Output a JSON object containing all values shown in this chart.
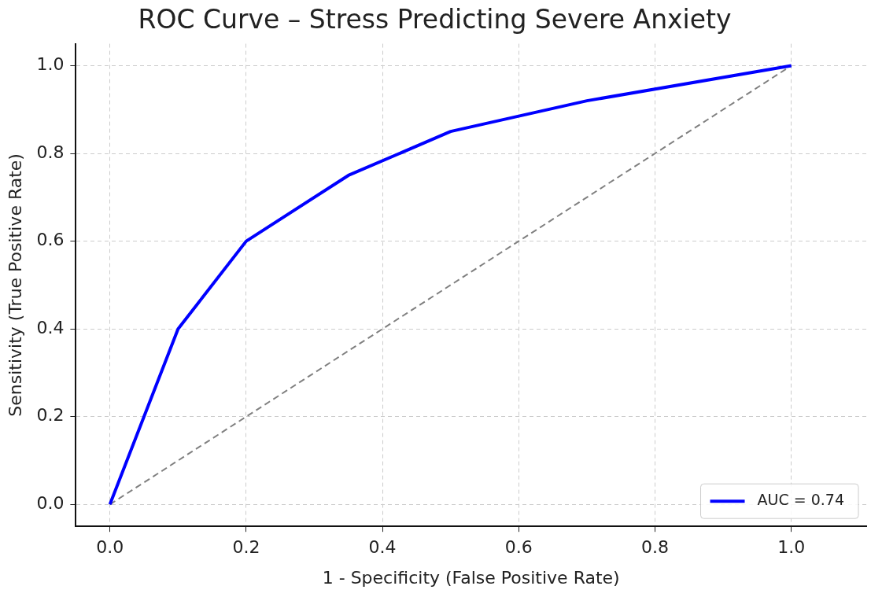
{
  "chart_data": {
    "type": "line",
    "title": "ROC Curve – Stress Predicting Severe Anxiety",
    "xlabel": "1 - Specificity (False Positive Rate)",
    "ylabel": "Sensitivity (True Positive Rate)",
    "series": [
      {
        "name": "AUC = 0.74",
        "color": "#0000ff",
        "x": [
          0,
          0.1,
          0.2,
          0.35,
          0.5,
          0.7,
          1
        ],
        "values": [
          0,
          0.4,
          0.6,
          0.75,
          0.85,
          0.92,
          1
        ],
        "line_style": "solid"
      },
      {
        "color": "#808080",
        "x": [
          0,
          1
        ],
        "values": [
          0,
          1
        ],
        "line_style": "dashed"
      }
    ],
    "xlim": [
      -0.05,
      1.11
    ],
    "ylim": [
      -0.05,
      1.05
    ],
    "xticks": [
      {
        "value": 0,
        "label": "0.0"
      },
      0.2,
      0.4,
      0.6,
      0.8,
      {
        "value": 1,
        "label": "1.0"
      }
    ],
    "yticks": [
      {
        "value": 0,
        "label": "0.0"
      },
      0.2,
      0.4,
      0.6,
      0.8,
      {
        "value": 1,
        "label": "1.0"
      }
    ],
    "grid": true,
    "legend": "bottom right",
    "marker": "none"
  }
}
